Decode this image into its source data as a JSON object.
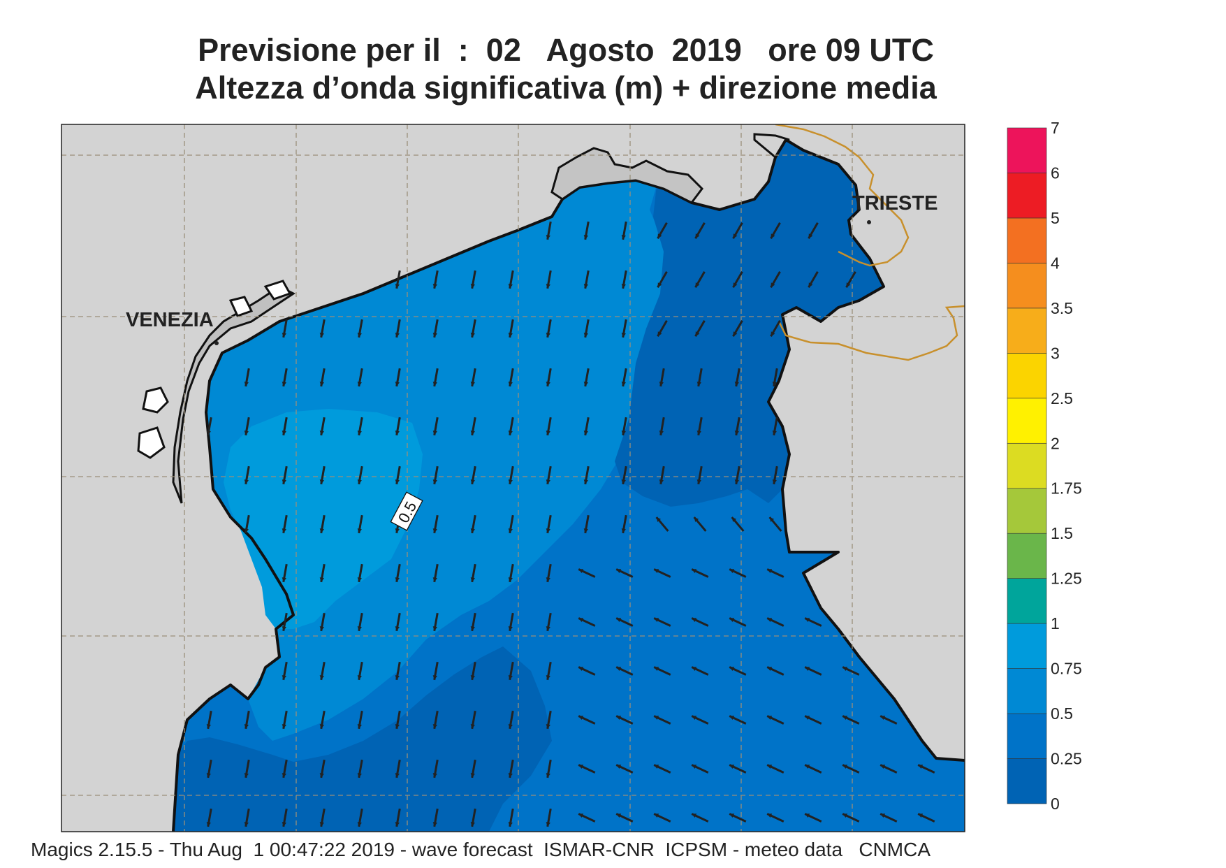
{
  "header": {
    "title_line1": "Previsione per il  :  02   Agosto  2019   ore 09 UTC",
    "title_line2": "Altezza d’onda significativa (m) + direzione media"
  },
  "map": {
    "labels": {
      "venezia": "VENEZIA",
      "trieste": "TRIESTE"
    },
    "contour_label": "0.5",
    "colors": {
      "land": "#d3d3d3",
      "sea_0_025": "#0063b4",
      "sea_025_05": "#0073c8",
      "sea_05_075": "#0089d4",
      "sea_075_1": "#009bdc",
      "coastline": "#111111",
      "border": "#c8902c",
      "grid": "#9a8f7a",
      "arrow": "#222222"
    },
    "wave_direction": "mostly from north-northwest, turning to southeast in the southeast basin"
  },
  "legend": {
    "title": "",
    "bins": [
      {
        "label": "0",
        "color": "#0063b4"
      },
      {
        "label": "0.25",
        "color": "#0073c8"
      },
      {
        "label": "0.5",
        "color": "#0089d4"
      },
      {
        "label": "0.75",
        "color": "#009bdc"
      },
      {
        "label": "1",
        "color": "#00a59b"
      },
      {
        "label": "1.25",
        "color": "#6ab64a"
      },
      {
        "label": "1.5",
        "color": "#a5c83a"
      },
      {
        "label": "1.75",
        "color": "#dcdc22"
      },
      {
        "label": "2",
        "color": "#fff100"
      },
      {
        "label": "2.5",
        "color": "#fbd400"
      },
      {
        "label": "3",
        "color": "#f7ad1a"
      },
      {
        "label": "3.5",
        "color": "#f58e1e"
      },
      {
        "label": "4",
        "color": "#f37021"
      },
      {
        "label": "5",
        "color": "#ed1c24"
      },
      {
        "label": "6",
        "color": "#ed145b"
      }
    ],
    "top_label": "7"
  },
  "footer": {
    "text": "Magics 2.15.5 - Thu Aug  1 00:47:22 2019 - wave forecast  ISMAR-CNR  ICPSM - meteo data   CNMCA"
  }
}
